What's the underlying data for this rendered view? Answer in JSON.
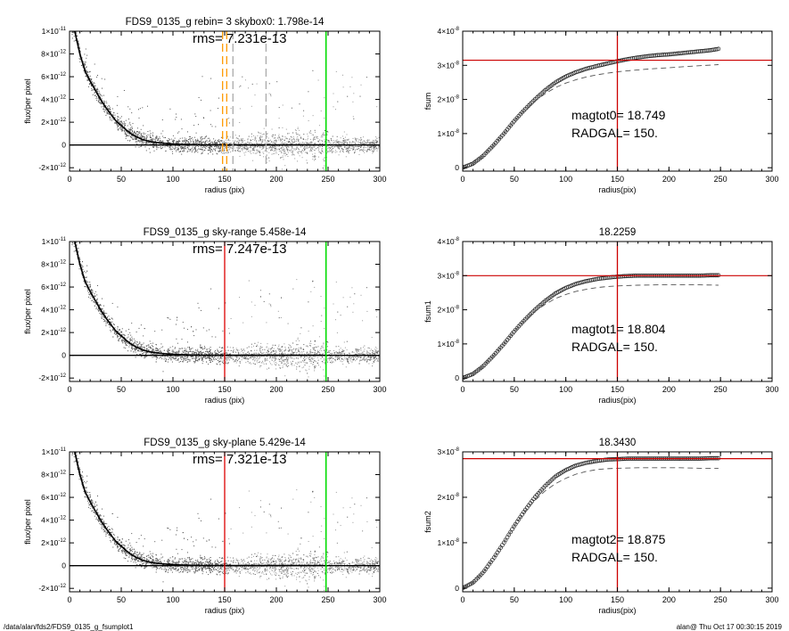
{
  "footer": {
    "path": "/data/alan/fds2/FDS9_0135_g_fsumplot1",
    "stamp": "alan@  Thu Oct 17 00:30:15 2019"
  },
  "chart_data": [
    {
      "type": "scatter",
      "title": "FDS9_0135_g rebin= 3    skybox0:  1.798e-14",
      "annotation": "rms= 7.231e-13",
      "xlabel": "radius (pix)",
      "ylabel": "flux/per pixel",
      "xlim": [
        0,
        300
      ],
      "ylim": [
        -2.3e-12,
        1e-11
      ],
      "xticks": [
        0,
        50,
        100,
        150,
        200,
        250,
        300
      ],
      "xtick_labels": [
        "0",
        "50",
        "100",
        "150",
        "200",
        "250",
        "300"
      ],
      "yticks": [
        -2e-12,
        0,
        2e-12,
        4e-12,
        6e-12,
        8e-12,
        1e-11
      ],
      "ytick_labels": [
        {
          "mantissa": "-2×10",
          "exp": "-12"
        },
        {
          "mantissa": "0",
          "exp": ""
        },
        {
          "mantissa": "2×10",
          "exp": "-12"
        },
        {
          "mantissa": "4×10",
          "exp": "-12"
        },
        {
          "mantissa": "6×10",
          "exp": "-12"
        },
        {
          "mantissa": "8×10",
          "exp": "-12"
        },
        {
          "mantissa": "1×10",
          "exp": "-11"
        }
      ],
      "profile": {
        "x": [
          5,
          10,
          15,
          20,
          25,
          30,
          35,
          40,
          45,
          50,
          55,
          60,
          65,
          70,
          75,
          80,
          90,
          100,
          110,
          120,
          130,
          150,
          175,
          200,
          225,
          245
        ],
        "y": [
          1e-11,
          8e-12,
          6.5e-12,
          5.6e-12,
          4.8e-12,
          4e-12,
          3.3e-12,
          2.7e-12,
          2.1e-12,
          1.7e-12,
          1.3e-12,
          9.5e-13,
          7e-13,
          5e-13,
          3.6e-13,
          2.6e-13,
          1.5e-13,
          9e-14,
          5e-14,
          3e-14,
          1.5e-14,
          0,
          0,
          0,
          0,
          0
        ]
      },
      "vlines": [
        {
          "x": 148,
          "color": "#ff9900",
          "style": "dashed"
        },
        {
          "x": 152,
          "color": "#ff9900",
          "style": "dashed"
        },
        {
          "x": 158,
          "color": "#aaaaaa",
          "style": "dashed"
        },
        {
          "x": 190,
          "color": "#aaaaaa",
          "style": "dashed"
        },
        {
          "x": 248,
          "color": "#00dd00",
          "style": "solid"
        }
      ],
      "hlines": [
        {
          "y": 0,
          "color": "#000000"
        }
      ]
    },
    {
      "type": "line",
      "title": "",
      "annotation": [
        "magtot0=  18.749",
        "RADGAL=    150."
      ],
      "xlabel": "radius(pix)",
      "ylabel": "fsum",
      "xlim": [
        0,
        300
      ],
      "ylim": [
        -1e-09,
        4e-08
      ],
      "xticks": [
        0,
        50,
        100,
        150,
        200,
        250,
        300
      ],
      "xtick_labels": [
        "0",
        "50",
        "100",
        "150",
        "200",
        "250",
        "300"
      ],
      "yticks": [
        0,
        1e-08,
        2e-08,
        3e-08,
        4e-08
      ],
      "ytick_labels": [
        {
          "mantissa": "0",
          "exp": ""
        },
        {
          "mantissa": "1×10",
          "exp": "-8"
        },
        {
          "mantissa": "2×10",
          "exp": "-8"
        },
        {
          "mantissa": "3×10",
          "exp": "-8"
        },
        {
          "mantissa": "4×10",
          "exp": "-8"
        }
      ],
      "series": [
        {
          "style": "markers",
          "x": [
            0,
            10,
            20,
            30,
            40,
            50,
            60,
            70,
            80,
            90,
            100,
            110,
            120,
            130,
            140,
            150,
            160,
            170,
            180,
            190,
            200,
            210,
            220,
            230,
            240,
            248
          ],
          "y": [
            0,
            1.2e-09,
            3.5e-09,
            6.6e-09,
            1e-08,
            1.37e-08,
            1.7e-08,
            2e-08,
            2.27e-08,
            2.5e-08,
            2.67e-08,
            2.8e-08,
            2.9e-08,
            2.98e-08,
            3.05e-08,
            3.12e-08,
            3.18e-08,
            3.23e-08,
            3.27e-08,
            3.3e-08,
            3.32e-08,
            3.35e-08,
            3.38e-08,
            3.41e-08,
            3.44e-08,
            3.48e-08
          ]
        },
        {
          "style": "dashed",
          "x": [
            0,
            10,
            20,
            30,
            40,
            50,
            60,
            70,
            80,
            90,
            100,
            110,
            120,
            130,
            140,
            150,
            160,
            180,
            200,
            220,
            248
          ],
          "y": [
            0,
            1.2e-09,
            3.5e-09,
            6.6e-09,
            1e-08,
            1.37e-08,
            1.68e-08,
            1.95e-08,
            2.17e-08,
            2.35e-08,
            2.48e-08,
            2.58e-08,
            2.66e-08,
            2.72e-08,
            2.77e-08,
            2.81e-08,
            2.84e-08,
            2.89e-08,
            2.93e-08,
            2.97e-08,
            3.02e-08
          ]
        }
      ],
      "vlines": [
        {
          "x": 150,
          "color": "#cc0000"
        }
      ],
      "hlines": [
        {
          "y": 3.15e-08,
          "color": "#cc0000"
        }
      ]
    },
    {
      "type": "scatter",
      "title": "FDS9_0135_g sky-range  5.458e-14",
      "annotation": "rms= 7.247e-13",
      "xlabel": "radius (pix)",
      "ylabel": "flux/per pixel",
      "xlim": [
        0,
        300
      ],
      "ylim": [
        -2.3e-12,
        1e-11
      ],
      "xticks": [
        0,
        50,
        100,
        150,
        200,
        250,
        300
      ],
      "xtick_labels": [
        "0",
        "50",
        "100",
        "150",
        "200",
        "250",
        "300"
      ],
      "yticks": [
        -2e-12,
        0,
        2e-12,
        4e-12,
        6e-12,
        8e-12,
        1e-11
      ],
      "ytick_labels": [
        {
          "mantissa": "-2×10",
          "exp": "-12"
        },
        {
          "mantissa": "0",
          "exp": ""
        },
        {
          "mantissa": "2×10",
          "exp": "-12"
        },
        {
          "mantissa": "4×10",
          "exp": "-12"
        },
        {
          "mantissa": "6×10",
          "exp": "-12"
        },
        {
          "mantissa": "8×10",
          "exp": "-12"
        },
        {
          "mantissa": "1×10",
          "exp": "-11"
        }
      ],
      "profile": {
        "x": [
          5,
          10,
          15,
          20,
          25,
          30,
          35,
          40,
          45,
          50,
          55,
          60,
          65,
          70,
          75,
          80,
          90,
          100,
          110,
          120,
          130,
          150,
          175,
          200,
          225,
          245
        ],
        "y": [
          1e-11,
          8e-12,
          6.5e-12,
          5.6e-12,
          4.8e-12,
          4e-12,
          3.3e-12,
          2.7e-12,
          2.1e-12,
          1.7e-12,
          1.3e-12,
          9.5e-13,
          7e-13,
          5e-13,
          3.6e-13,
          2.6e-13,
          1.5e-13,
          9e-14,
          5e-14,
          3e-14,
          1.5e-14,
          0,
          0,
          0,
          0,
          0
        ]
      },
      "vlines": [
        {
          "x": 150,
          "color": "#dd0000",
          "style": "solid"
        },
        {
          "x": 248,
          "color": "#00dd00",
          "style": "solid"
        }
      ],
      "hlines": [
        {
          "y": 0,
          "color": "#000000"
        }
      ]
    },
    {
      "type": "line",
      "title": "18.2259",
      "annotation": [
        "magtot1=  18.804",
        "RADGAL=    150."
      ],
      "xlabel": "radius(pix)",
      "ylabel": "fsum1",
      "xlim": [
        0,
        300
      ],
      "ylim": [
        -1e-09,
        4e-08
      ],
      "xticks": [
        0,
        50,
        100,
        150,
        200,
        250,
        300
      ],
      "xtick_labels": [
        "0",
        "50",
        "100",
        "150",
        "200",
        "250",
        "300"
      ],
      "yticks": [
        0,
        1e-08,
        2e-08,
        3e-08,
        4e-08
      ],
      "ytick_labels": [
        {
          "mantissa": "0",
          "exp": ""
        },
        {
          "mantissa": "1×10",
          "exp": "-8"
        },
        {
          "mantissa": "2×10",
          "exp": "-8"
        },
        {
          "mantissa": "3×10",
          "exp": "-8"
        },
        {
          "mantissa": "4×10",
          "exp": "-8"
        }
      ],
      "series": [
        {
          "style": "markers",
          "x": [
            0,
            10,
            20,
            30,
            40,
            50,
            60,
            70,
            80,
            90,
            100,
            110,
            120,
            130,
            140,
            150,
            160,
            170,
            180,
            190,
            200,
            210,
            220,
            230,
            240,
            248
          ],
          "y": [
            0,
            1.2e-09,
            3.5e-09,
            6.6e-09,
            1e-08,
            1.37e-08,
            1.7e-08,
            2e-08,
            2.26e-08,
            2.48e-08,
            2.64e-08,
            2.76e-08,
            2.84e-08,
            2.9e-08,
            2.94e-08,
            2.97e-08,
            2.99e-08,
            3e-08,
            3e-08,
            3e-08,
            3e-08,
            3e-08,
            3e-08,
            3e-08,
            3.01e-08,
            3.01e-08
          ]
        },
        {
          "style": "dashed",
          "x": [
            0,
            10,
            20,
            30,
            40,
            50,
            60,
            70,
            80,
            90,
            100,
            110,
            120,
            130,
            140,
            150,
            170,
            190,
            210,
            230,
            248
          ],
          "y": [
            0,
            1.2e-09,
            3.5e-09,
            6.6e-09,
            1e-08,
            1.37e-08,
            1.68e-08,
            1.95e-08,
            2.16e-08,
            2.33e-08,
            2.45e-08,
            2.54e-08,
            2.6e-08,
            2.65e-08,
            2.68e-08,
            2.7e-08,
            2.72e-08,
            2.73e-08,
            2.73e-08,
            2.73e-08,
            2.72e-08
          ]
        }
      ],
      "vlines": [
        {
          "x": 150,
          "color": "#cc0000"
        }
      ],
      "hlines": [
        {
          "y": 3e-08,
          "color": "#cc0000"
        }
      ]
    },
    {
      "type": "scatter",
      "title": "FDS9_0135_g sky-plane  5.429e-14",
      "annotation": "rms= 7.321e-13",
      "xlabel": "radius (pix)",
      "ylabel": "flux/per pixel",
      "xlim": [
        0,
        300
      ],
      "ylim": [
        -2.3e-12,
        1e-11
      ],
      "xticks": [
        0,
        50,
        100,
        150,
        200,
        250,
        300
      ],
      "xtick_labels": [
        "0",
        "50",
        "100",
        "150",
        "200",
        "250",
        "300"
      ],
      "yticks": [
        -2e-12,
        0,
        2e-12,
        4e-12,
        6e-12,
        8e-12,
        1e-11
      ],
      "ytick_labels": [
        {
          "mantissa": "-2×10",
          "exp": "-12"
        },
        {
          "mantissa": "0",
          "exp": ""
        },
        {
          "mantissa": "2×10",
          "exp": "-12"
        },
        {
          "mantissa": "4×10",
          "exp": "-12"
        },
        {
          "mantissa": "6×10",
          "exp": "-12"
        },
        {
          "mantissa": "8×10",
          "exp": "-12"
        },
        {
          "mantissa": "1×10",
          "exp": "-11"
        }
      ],
      "profile": {
        "x": [
          5,
          10,
          15,
          20,
          25,
          30,
          35,
          40,
          45,
          50,
          55,
          60,
          65,
          70,
          75,
          80,
          90,
          100,
          110,
          120,
          130,
          150,
          175,
          200,
          225,
          245
        ],
        "y": [
          1e-11,
          8e-12,
          6.5e-12,
          5.6e-12,
          4.8e-12,
          4e-12,
          3.3e-12,
          2.7e-12,
          2.1e-12,
          1.7e-12,
          1.3e-12,
          9.5e-13,
          7e-13,
          5e-13,
          3.6e-13,
          2.6e-13,
          1.5e-13,
          9e-14,
          5e-14,
          3e-14,
          1.5e-14,
          0,
          0,
          0,
          0,
          0
        ]
      },
      "vlines": [
        {
          "x": 150,
          "color": "#dd0000",
          "style": "solid"
        },
        {
          "x": 248,
          "color": "#00dd00",
          "style": "solid"
        }
      ],
      "hlines": [
        {
          "y": 0,
          "color": "#000000"
        }
      ]
    },
    {
      "type": "line",
      "title": "18.3430",
      "annotation": [
        "magtot2=  18.875",
        "RADGAL=    150."
      ],
      "xlabel": "radius(pix)",
      "ylabel": "fsum2",
      "xlim": [
        0,
        300
      ],
      "ylim": [
        -8e-10,
        3e-08
      ],
      "xticks": [
        0,
        50,
        100,
        150,
        200,
        250,
        300
      ],
      "xtick_labels": [
        "0",
        "50",
        "100",
        "150",
        "200",
        "250",
        "300"
      ],
      "yticks": [
        0,
        1e-08,
        2e-08,
        3e-08
      ],
      "ytick_labels": [
        {
          "mantissa": "0",
          "exp": ""
        },
        {
          "mantissa": "1×10",
          "exp": "-8"
        },
        {
          "mantissa": "2×10",
          "exp": "-8"
        },
        {
          "mantissa": "3×10",
          "exp": "-8"
        }
      ],
      "series": [
        {
          "style": "markers",
          "x": [
            0,
            10,
            20,
            30,
            40,
            50,
            60,
            70,
            80,
            90,
            100,
            110,
            120,
            130,
            140,
            150,
            160,
            170,
            180,
            190,
            200,
            210,
            220,
            230,
            240,
            248
          ],
          "y": [
            0,
            1.2e-09,
            3.5e-09,
            6.6e-09,
            1e-08,
            1.37e-08,
            1.7e-08,
            2e-08,
            2.25e-08,
            2.46e-08,
            2.6e-08,
            2.7e-08,
            2.76e-08,
            2.8e-08,
            2.83e-08,
            2.84e-08,
            2.85e-08,
            2.85e-08,
            2.85e-08,
            2.85e-08,
            2.85e-08,
            2.85e-08,
            2.85e-08,
            2.85e-08,
            2.86e-08,
            2.86e-08
          ]
        },
        {
          "style": "dashed",
          "x": [
            0,
            10,
            20,
            30,
            40,
            50,
            60,
            70,
            80,
            90,
            100,
            110,
            120,
            130,
            140,
            150,
            170,
            190,
            210,
            230,
            248
          ],
          "y": [
            0,
            1.2e-09,
            3.5e-09,
            6.6e-09,
            1e-08,
            1.37e-08,
            1.68e-08,
            1.93e-08,
            2.14e-08,
            2.3e-08,
            2.42e-08,
            2.51e-08,
            2.57e-08,
            2.61e-08,
            2.63e-08,
            2.64e-08,
            2.65e-08,
            2.65e-08,
            2.65e-08,
            2.64e-08,
            2.64e-08
          ]
        }
      ],
      "vlines": [
        {
          "x": 150,
          "color": "#cc0000"
        }
      ],
      "hlines": [
        {
          "y": 2.85e-08,
          "color": "#cc0000"
        }
      ]
    }
  ]
}
